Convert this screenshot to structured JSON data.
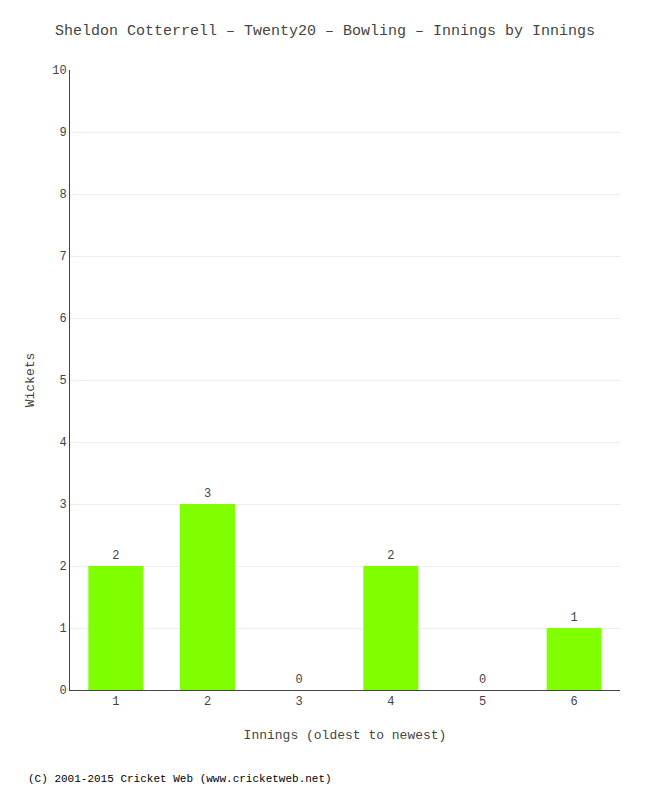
{
  "chart_data": {
    "type": "bar",
    "title": "Sheldon Cotterrell – Twenty20 – Bowling – Innings by Innings",
    "categories": [
      "1",
      "2",
      "3",
      "4",
      "5",
      "6"
    ],
    "values": [
      2,
      3,
      0,
      2,
      0,
      1
    ],
    "color": "#7fff00",
    "xlabel": "Innings (oldest to newest)",
    "ylabel": "Wickets",
    "ylim": [
      0,
      10
    ],
    "yticks": [
      0,
      1,
      2,
      3,
      4,
      5,
      6,
      7,
      8,
      9,
      10
    ],
    "grid": true,
    "data_labels": true,
    "footer": "(C) 2001-2015 Cricket Web (www.cricketweb.net)"
  }
}
